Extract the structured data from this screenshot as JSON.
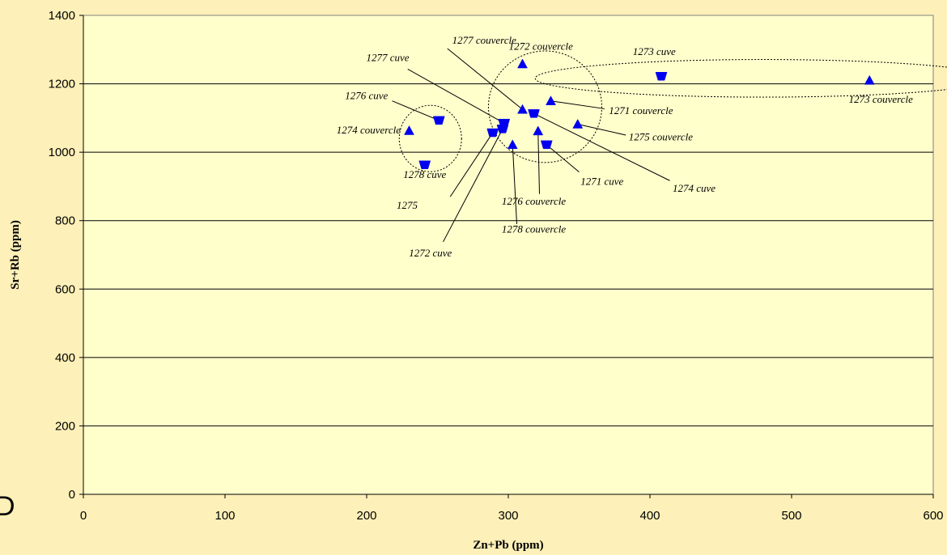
{
  "chart_data": {
    "type": "scatter",
    "title": "",
    "xlabel": "Zn+Pb (ppm)",
    "ylabel": "Sr+Rb (ppm)",
    "xlim": [
      0,
      600
    ],
    "ylim": [
      0,
      1400
    ],
    "xticks": [
      "0",
      "100",
      "200",
      "300",
      "400",
      "500",
      "600"
    ],
    "yticks": [
      "0",
      "200",
      "400",
      "600",
      "800",
      "1000",
      "1200",
      "1400"
    ],
    "grid": "horizontal",
    "colors": {
      "plot_bg": "#ffffcc",
      "page_bg": "#fdf0b8",
      "marker": "#0000ee"
    },
    "series": [
      {
        "marker": "triangle-up",
        "points": [
          {
            "x": 230,
            "y": 1063
          },
          {
            "x": 303,
            "y": 1022
          },
          {
            "x": 310,
            "y": 1258
          },
          {
            "x": 310,
            "y": 1125
          },
          {
            "x": 321,
            "y": 1062
          },
          {
            "x": 330,
            "y": 1150
          },
          {
            "x": 349,
            "y": 1082
          },
          {
            "x": 555,
            "y": 1210
          }
        ]
      },
      {
        "marker": "triangle-down",
        "points": [
          {
            "x": 241,
            "y": 963
          },
          {
            "x": 251,
            "y": 1093
          },
          {
            "x": 289,
            "y": 1057
          },
          {
            "x": 296,
            "y": 1068
          },
          {
            "x": 297,
            "y": 1085
          },
          {
            "x": 318,
            "y": 1113
          },
          {
            "x": 327,
            "y": 1022
          },
          {
            "x": 408,
            "y": 1222
          }
        ]
      }
    ],
    "annotations": [
      {
        "text": "1277 couvercle",
        "tx": 283,
        "ty": 1317,
        "anchor": "middle",
        "lx1": 257,
        "ly1": 1303,
        "lx2": 310,
        "ly2": 1125
      },
      {
        "text": "1272 couvercle",
        "tx": 323,
        "ty": 1299,
        "anchor": "middle"
      },
      {
        "text": "1273 cuve",
        "tx": 403,
        "ty": 1284,
        "anchor": "middle"
      },
      {
        "text": "1277 cuve",
        "tx": 230,
        "ty": 1266,
        "anchor": "end",
        "lx1": 229,
        "ly1": 1243,
        "lx2": 297,
        "ly2": 1085
      },
      {
        "text": "1276 cuve",
        "tx": 215,
        "ty": 1155,
        "anchor": "end",
        "lx1": 218,
        "ly1": 1150,
        "lx2": 251,
        "ly2": 1093
      },
      {
        "text": "1274 couvercle",
        "tx": 224,
        "ty": 1055,
        "anchor": "end"
      },
      {
        "text": "1278 cuve",
        "tx": 241,
        "ty": 925,
        "anchor": "middle"
      },
      {
        "text": "1275",
        "tx": 236,
        "ty": 835,
        "anchor": "end",
        "lx1": 259,
        "ly1": 870,
        "lx2": 289,
        "ly2": 1057
      },
      {
        "text": "1272 cuve",
        "tx": 245,
        "ty": 695,
        "anchor": "middle",
        "lx1": 254,
        "ly1": 738,
        "lx2": 296,
        "ly2": 1068
      },
      {
        "text": "1278 couvercle",
        "tx": 318,
        "ty": 765,
        "anchor": "middle",
        "lx1": 306,
        "ly1": 790,
        "lx2": 303,
        "ly2": 1022
      },
      {
        "text": "1276 couvercle",
        "tx": 318,
        "ty": 847,
        "anchor": "middle",
        "lx1": 322,
        "ly1": 878,
        "lx2": 321,
        "ly2": 1062
      },
      {
        "text": "1271 cuve",
        "tx": 351,
        "ty": 905,
        "anchor": "start",
        "lx1": 350,
        "ly1": 942,
        "lx2": 327,
        "ly2": 1022
      },
      {
        "text": "1274 cuve",
        "tx": 416,
        "ty": 885,
        "anchor": "start",
        "lx1": 414,
        "ly1": 917,
        "lx2": 318,
        "ly2": 1113
      },
      {
        "text": "1275 couvercle",
        "tx": 385,
        "ty": 1035,
        "anchor": "start",
        "lx1": 383,
        "ly1": 1050,
        "lx2": 349,
        "ly2": 1082
      },
      {
        "text": "1271 couvercle",
        "tx": 371,
        "ty": 1112,
        "anchor": "start",
        "lx1": 368,
        "ly1": 1127,
        "lx2": 330,
        "ly2": 1150
      },
      {
        "text": "1273 couvercle",
        "tx": 563,
        "ty": 1145,
        "anchor": "middle"
      }
    ],
    "groupings": [
      {
        "cx": 245,
        "cy": 1040,
        "rx": 22,
        "ry": 97
      },
      {
        "cx": 326,
        "cy": 1133,
        "rx": 40,
        "ry": 163
      },
      {
        "cx": 480,
        "cy": 1216,
        "rx": 161,
        "ry": 55
      }
    ]
  },
  "corner_glyph": "D"
}
